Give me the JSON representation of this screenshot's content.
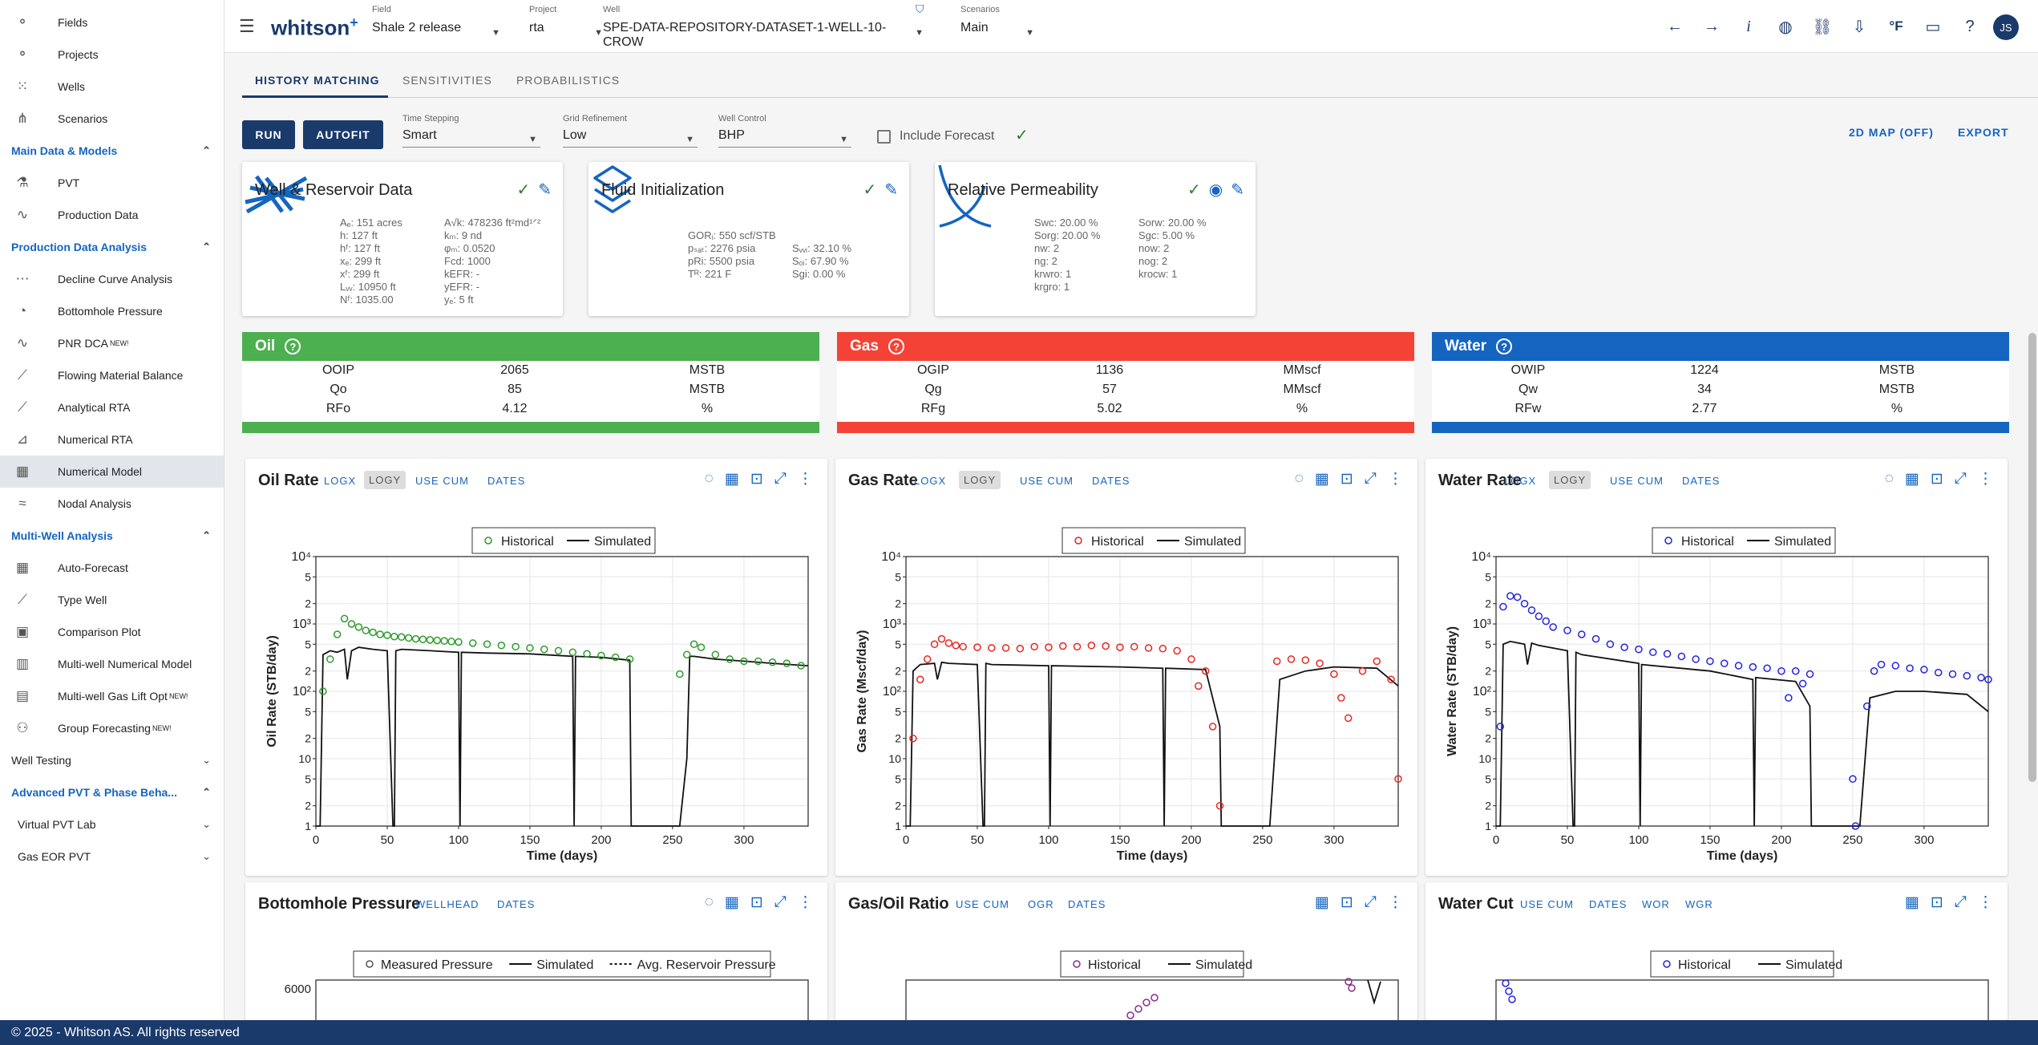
{
  "sidebar": {
    "top": [
      {
        "label": "Fields",
        "icon": "fields-icon"
      },
      {
        "label": "Projects",
        "icon": "projects-icon"
      },
      {
        "label": "Wells",
        "icon": "wells-icon"
      },
      {
        "label": "Scenarios",
        "icon": "scenarios-icon"
      }
    ],
    "sec_main": "Main Data & Models",
    "main": [
      {
        "label": "PVT"
      },
      {
        "label": "Production Data"
      }
    ],
    "sec_pda": "Production Data Analysis",
    "pda": [
      {
        "label": "Decline Curve Analysis",
        "new": ""
      },
      {
        "label": "Bottomhole Pressure",
        "new": ""
      },
      {
        "label": "PNR DCA",
        "new": "NEW!"
      },
      {
        "label": "Flowing Material Balance",
        "new": ""
      },
      {
        "label": "Analytical RTA",
        "new": ""
      },
      {
        "label": "Numerical RTA",
        "new": ""
      },
      {
        "label": "Numerical Model",
        "new": ""
      },
      {
        "label": "Nodal Analysis",
        "new": ""
      }
    ],
    "sec_mw": "Multi-Well Analysis",
    "mw": [
      {
        "label": "Auto-Forecast",
        "new": ""
      },
      {
        "label": "Type Well",
        "new": ""
      },
      {
        "label": "Comparison Plot",
        "new": ""
      },
      {
        "label": "Multi-well Numerical Model",
        "new": ""
      },
      {
        "label": "Multi-well Gas Lift Opt",
        "new": "NEW!"
      },
      {
        "label": "Group Forecasting",
        "new": "NEW!"
      }
    ],
    "sec_wt": "Well Testing",
    "sec_adv": "Advanced PVT & Phase Beha...",
    "adv": [
      {
        "label": "Virtual PVT Lab"
      },
      {
        "label": "Gas EOR PVT"
      }
    ]
  },
  "topbar": {
    "logo": "whitson",
    "logo_plus": "+",
    "field_label": "Field",
    "field_value": "Shale 2 release",
    "project_label": "Project",
    "project_value": "rta",
    "well_label": "Well",
    "well_value": "SPE-DATA-REPOSITORY-DATASET-1-WELL-10-CROW",
    "scen_label": "Scenarios",
    "scen_value": "Main",
    "units": "°F",
    "avatar": "JS"
  },
  "tabs": [
    "HISTORY MATCHING",
    "SENSITIVITIES",
    "PROBABILISTICS"
  ],
  "toolbar": {
    "run": "RUN",
    "autofit": "AUTOFIT",
    "ts_label": "Time Stepping",
    "ts_value": "Smart",
    "gr_label": "Grid Refinement",
    "gr_value": "Low",
    "wc_label": "Well Control",
    "wc_value": "BHP",
    "include_forecast": "Include Forecast",
    "map": "2D MAP (OFF)",
    "export": "EXPORT"
  },
  "cards": {
    "well_title": "Well & Reservoir Data",
    "well_col1": [
      "Aₑ: 151 acres",
      "h: 127 ft",
      "hᶠ: 127 ft",
      "xₑ: 299 ft",
      "xᶠ: 299 ft",
      "Lᵥᵥ: 10950 ft",
      "Nᶠ: 1035.00"
    ],
    "well_col2": [
      "A√k: 478236 ft²md¹ᐟ²",
      "kₘ: 9 nd",
      "φₘ: 0.0520",
      "Fcd: 1000",
      "kEFR: -",
      "yEFR: -",
      "yₑ: 5 ft"
    ],
    "fluid_title": "Fluid Initialization",
    "fluid_col1": [
      "GORᵢ: 550 scf/STB",
      "pₛₐₜ: 2276 psia",
      "pRi: 5500 psia",
      "Tᴿ: 221 F"
    ],
    "fluid_col2": [
      "",
      "Sᵥᵥᵢ: 32.10 %",
      "Sₒᵢ: 67.90 %",
      "Sgi: 0.00 %"
    ],
    "rp_title": "Relative Permeability",
    "rp_col1": [
      "Swc: 20.00 %",
      "Sorg: 20.00 %",
      "nw: 2",
      "ng: 2",
      "krwro: 1",
      "krgro: 1"
    ],
    "rp_col2": [
      "Sorw: 20.00 %",
      "Sgc: 5.00 %",
      "now: 2",
      "nog: 2",
      "krocw: 1"
    ]
  },
  "summary": [
    {
      "title": "Oil",
      "color": "#4caf50",
      "rows": [
        [
          "OOIP",
          "2065",
          "MSTB"
        ],
        [
          "Qo",
          "85",
          "MSTB"
        ],
        [
          "RFo",
          "4.12",
          "%"
        ]
      ]
    },
    {
      "title": "Gas",
      "color": "#f44336",
      "rows": [
        [
          "OGIP",
          "1136",
          "MMscf"
        ],
        [
          "Qg",
          "57",
          "MMscf"
        ],
        [
          "RFg",
          "5.02",
          "%"
        ]
      ]
    },
    {
      "title": "Water",
      "color": "#1565c0",
      "rows": [
        [
          "OWIP",
          "1224",
          "MSTB"
        ],
        [
          "Qw",
          "34",
          "MSTB"
        ],
        [
          "RFw",
          "2.77",
          "%"
        ]
      ]
    }
  ],
  "plot_opts": {
    "logx": "LOGX",
    "logy": "LOGY",
    "usecum": "USE CUM",
    "dates": "DATES",
    "wellhead": "WELLHEAD",
    "ogr": "OGR",
    "wor": "WOR",
    "wgr": "WGR"
  },
  "bottom_titles": [
    "Bottomhole Pressure",
    "Gas/Oil Ratio",
    "Water Cut"
  ],
  "bottom_legends": [
    [
      "Measured Pressure",
      "Simulated",
      "Avg. Reservoir Pressure"
    ],
    [
      "Historical",
      "Simulated"
    ],
    [
      "Historical",
      "Simulated"
    ]
  ],
  "bhp_tick": "6000",
  "chart_data": [
    {
      "type": "scatter",
      "title": "Oil Rate",
      "xlabel": "Time (days)",
      "ylabel": "Oil Rate (STB/day)",
      "log_y": true,
      "xlim": [
        0,
        345
      ],
      "ylim": [
        1,
        10000
      ],
      "x_ticks": [
        0,
        50,
        100,
        150,
        200,
        250,
        300
      ],
      "y_ticks": [
        {
          "v": 1,
          "t": "1"
        },
        {
          "v": 2,
          "t": "2"
        },
        {
          "v": 5,
          "t": "5"
        },
        {
          "v": 10,
          "t": "10"
        },
        {
          "v": 20,
          "t": "2"
        },
        {
          "v": 50,
          "t": "5"
        },
        {
          "v": 100,
          "t": "10²"
        },
        {
          "v": 200,
          "t": "2"
        },
        {
          "v": 500,
          "t": "5"
        },
        {
          "v": 1000,
          "t": "10³"
        },
        {
          "v": 2000,
          "t": "2"
        },
        {
          "v": 5000,
          "t": "5"
        },
        {
          "v": 10000,
          "t": "10⁴"
        }
      ],
      "legend": [
        "Historical",
        "Simulated"
      ],
      "color": "#2e9a2e",
      "hist_x": [
        5,
        10,
        15,
        20,
        25,
        30,
        35,
        40,
        45,
        50,
        55,
        60,
        65,
        70,
        75,
        80,
        85,
        90,
        95,
        100,
        110,
        120,
        130,
        140,
        150,
        160,
        170,
        180,
        190,
        200,
        210,
        220,
        255,
        260,
        265,
        270,
        280,
        290,
        300,
        310,
        320,
        330,
        340
      ],
      "hist_y": [
        100,
        300,
        700,
        1200,
        1000,
        900,
        800,
        750,
        700,
        680,
        650,
        640,
        620,
        600,
        590,
        580,
        570,
        560,
        550,
        540,
        520,
        500,
        480,
        460,
        440,
        420,
        400,
        380,
        360,
        340,
        320,
        300,
        180,
        350,
        500,
        450,
        350,
        300,
        280,
        280,
        270,
        260,
        240
      ],
      "sim_x": [
        0,
        3,
        5,
        10,
        15,
        20,
        22,
        25,
        30,
        40,
        50,
        54,
        55,
        56,
        60,
        70,
        80,
        100,
        101,
        102,
        120,
        150,
        180,
        181,
        182,
        200,
        220,
        221,
        255,
        260,
        262,
        265,
        280,
        300,
        320,
        345
      ],
      "sim_y": [
        1,
        1,
        350,
        400,
        380,
        420,
        150,
        400,
        450,
        420,
        400,
        1,
        1,
        400,
        420,
        410,
        400,
        380,
        1,
        380,
        370,
        360,
        330,
        1,
        330,
        320,
        290,
        1,
        1,
        10,
        330,
        330,
        300,
        280,
        260,
        240
      ]
    },
    {
      "type": "scatter",
      "title": "Gas Rate",
      "xlabel": "Time (days)",
      "ylabel": "Gas Rate (Mscf/day)",
      "log_y": true,
      "xlim": [
        0,
        345
      ],
      "ylim": [
        1,
        10000
      ],
      "x_ticks": [
        0,
        50,
        100,
        150,
        200,
        250,
        300
      ],
      "y_ticks": [
        {
          "v": 1,
          "t": "1"
        },
        {
          "v": 2,
          "t": "2"
        },
        {
          "v": 5,
          "t": "5"
        },
        {
          "v": 10,
          "t": "10"
        },
        {
          "v": 20,
          "t": "2"
        },
        {
          "v": 50,
          "t": "5"
        },
        {
          "v": 100,
          "t": "10²"
        },
        {
          "v": 200,
          "t": "2"
        },
        {
          "v": 500,
          "t": "5"
        },
        {
          "v": 1000,
          "t": "10³"
        },
        {
          "v": 2000,
          "t": "2"
        },
        {
          "v": 5000,
          "t": "5"
        },
        {
          "v": 10000,
          "t": "10⁴"
        }
      ],
      "legend": [
        "Historical",
        "Simulated"
      ],
      "color": "#e8251f",
      "hist_x": [
        5,
        10,
        15,
        20,
        25,
        30,
        35,
        40,
        50,
        60,
        70,
        80,
        90,
        100,
        110,
        120,
        130,
        140,
        150,
        160,
        170,
        180,
        190,
        200,
        205,
        210,
        215,
        220,
        260,
        270,
        280,
        290,
        300,
        305,
        310,
        320,
        330,
        340,
        345
      ],
      "hist_y": [
        20,
        150,
        300,
        500,
        600,
        520,
        480,
        460,
        450,
        440,
        440,
        430,
        460,
        450,
        470,
        460,
        480,
        470,
        450,
        460,
        440,
        430,
        400,
        300,
        120,
        200,
        30,
        2,
        280,
        300,
        290,
        260,
        180,
        80,
        40,
        200,
        280,
        150,
        5
      ],
      "sim_x": [
        0,
        3,
        5,
        10,
        20,
        22,
        25,
        30,
        50,
        54,
        55,
        56,
        60,
        100,
        101,
        102,
        150,
        180,
        181,
        182,
        210,
        220,
        221,
        255,
        262,
        280,
        300,
        330,
        345
      ],
      "sim_y": [
        1,
        1,
        200,
        250,
        260,
        150,
        270,
        260,
        250,
        1,
        1,
        260,
        250,
        240,
        1,
        240,
        230,
        220,
        1,
        220,
        210,
        30,
        1,
        1,
        150,
        200,
        230,
        220,
        120
      ]
    },
    {
      "type": "scatter",
      "title": "Water Rate",
      "xlabel": "Time (days)",
      "ylabel": "Water Rate (STB/day)",
      "log_y": true,
      "xlim": [
        0,
        345
      ],
      "ylim": [
        1,
        10000
      ],
      "x_ticks": [
        0,
        50,
        100,
        150,
        200,
        250,
        300
      ],
      "y_ticks": [
        {
          "v": 1,
          "t": "1"
        },
        {
          "v": 2,
          "t": "2"
        },
        {
          "v": 5,
          "t": "5"
        },
        {
          "v": 10,
          "t": "10"
        },
        {
          "v": 20,
          "t": "2"
        },
        {
          "v": 50,
          "t": "5"
        },
        {
          "v": 100,
          "t": "10²"
        },
        {
          "v": 200,
          "t": "2"
        },
        {
          "v": 500,
          "t": "5"
        },
        {
          "v": 1000,
          "t": "10³"
        },
        {
          "v": 2000,
          "t": "2"
        },
        {
          "v": 5000,
          "t": "5"
        },
        {
          "v": 10000,
          "t": "10⁴"
        }
      ],
      "legend": [
        "Historical",
        "Simulated"
      ],
      "color": "#2323e0",
      "hist_x": [
        3,
        5,
        10,
        15,
        20,
        25,
        30,
        35,
        40,
        50,
        60,
        70,
        80,
        90,
        100,
        110,
        120,
        130,
        140,
        150,
        160,
        170,
        180,
        190,
        200,
        205,
        210,
        215,
        220,
        250,
        252,
        260,
        265,
        270,
        280,
        290,
        300,
        310,
        320,
        330,
        340,
        345
      ],
      "hist_y": [
        30,
        1800,
        2600,
        2500,
        2000,
        1600,
        1300,
        1100,
        900,
        800,
        700,
        600,
        500,
        450,
        420,
        380,
        360,
        330,
        300,
        280,
        260,
        240,
        230,
        220,
        200,
        80,
        200,
        130,
        180,
        5,
        1,
        60,
        200,
        250,
        240,
        220,
        210,
        190,
        180,
        170,
        160,
        150
      ],
      "sim_x": [
        0,
        3,
        5,
        10,
        20,
        22,
        25,
        30,
        50,
        54,
        55,
        56,
        60,
        100,
        101,
        102,
        150,
        180,
        181,
        182,
        210,
        220,
        221,
        255,
        262,
        280,
        300,
        330,
        345
      ],
      "sim_y": [
        1,
        1,
        500,
        550,
        500,
        250,
        520,
        480,
        400,
        1,
        1,
        380,
        350,
        260,
        1,
        250,
        200,
        150,
        1,
        160,
        140,
        60,
        1,
        1,
        80,
        100,
        100,
        90,
        50
      ]
    }
  ]
}
